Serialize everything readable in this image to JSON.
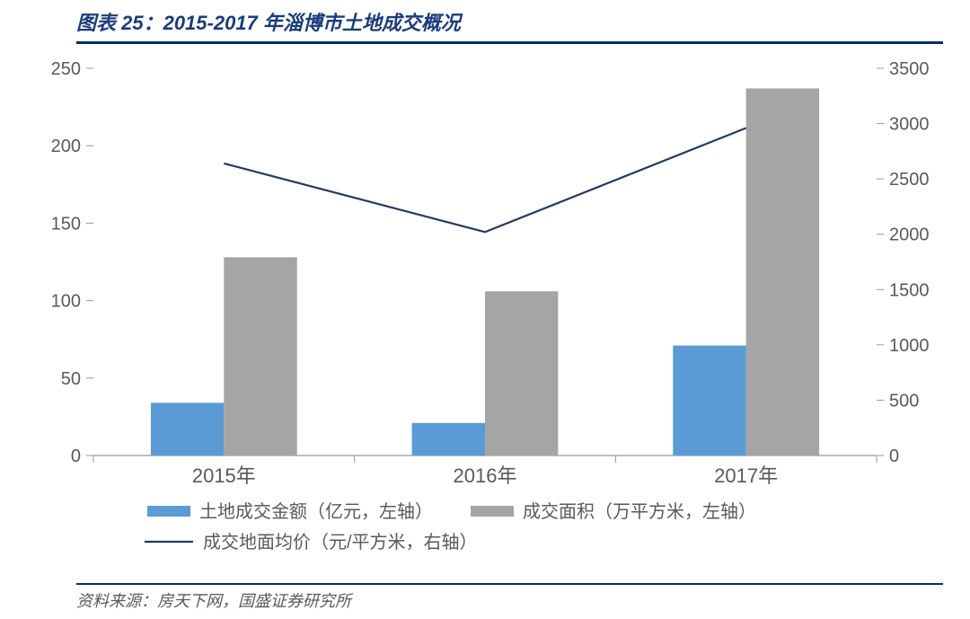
{
  "title": "图表 25：2015-2017 年淄博市土地成交概况",
  "source": "资料来源：房天下网，国盛证券研究所",
  "chart": {
    "type": "bar+line",
    "background_color": "#ffffff",
    "tick_color": "#999999",
    "axis_label_color": "#595959",
    "label_fontsize": 20,
    "categories": [
      "2015年",
      "2016年",
      "2017年"
    ],
    "left_axis": {
      "min": 0,
      "max": 250,
      "step": 50
    },
    "right_axis": {
      "min": 0,
      "max": 3500,
      "step": 500
    },
    "bar_width": 0.28,
    "series": {
      "bar1": {
        "name": "土地成交金额（亿元，左轴）",
        "color": "#5b9bd5",
        "axis": "left",
        "values": [
          34,
          21,
          71
        ]
      },
      "bar2": {
        "name": "成交面积（万平方米，左轴）",
        "color": "#a5a5a5",
        "axis": "left",
        "values": [
          128,
          106,
          237
        ]
      },
      "line1": {
        "name": "成交地面均价（元/平方米，右轴）",
        "color": "#223a5e",
        "axis": "right",
        "line_width": 2.2,
        "values": [
          2640,
          2020,
          2960
        ]
      }
    },
    "legend": {
      "swatch_w": 48,
      "swatch_h": 12,
      "line_swatch_w": 54
    }
  }
}
